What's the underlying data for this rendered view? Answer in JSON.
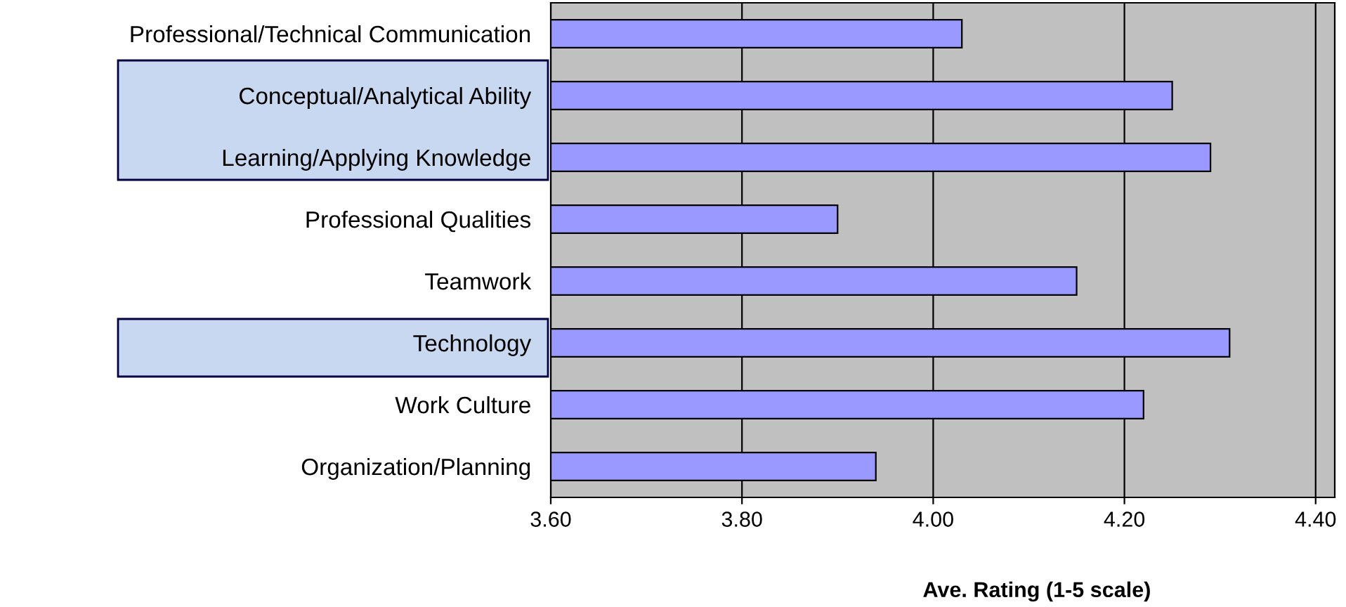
{
  "chart_data": {
    "type": "bar",
    "orientation": "horizontal",
    "xlabel": "Ave. Rating (1-5 scale)",
    "categories": [
      "Professional/Technical Communication",
      "Conceptual/Analytical Ability",
      "Learning/Applying Knowledge",
      "Professional Qualities",
      "Teamwork",
      "Technology",
      "Work Culture",
      "Organization/Planning"
    ],
    "values": [
      4.03,
      4.25,
      4.29,
      3.9,
      4.15,
      4.31,
      4.22,
      3.94
    ],
    "color": "#9999ff",
    "xlim": [
      3.6,
      4.42
    ],
    "xticks": [
      {
        "value": 3.6,
        "label": "3.60"
      },
      {
        "value": 3.8,
        "label": "3.80"
      },
      {
        "value": 4.0,
        "label": "4.00"
      },
      {
        "value": 4.2,
        "label": "4.20"
      },
      {
        "value": 4.4,
        "label": "4.40"
      }
    ],
    "grid": "x",
    "legend": false
  }
}
